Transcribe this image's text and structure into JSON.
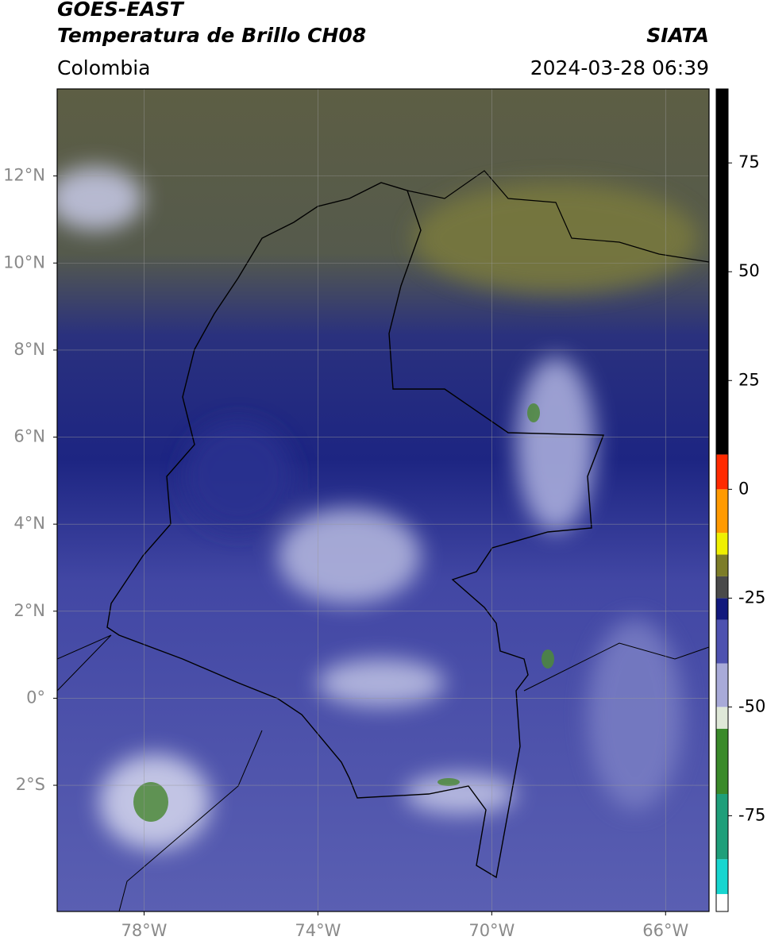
{
  "header": {
    "title_lines": [
      "GOES-EAST",
      "Temperatura de Brillo CH08"
    ],
    "source": "SIATA",
    "region": "Colombia",
    "timestamp": "2024-03-28 06:39"
  },
  "map": {
    "xlim": [
      -80,
      -65
    ],
    "ylim": [
      -4.9,
      14
    ],
    "xticks": [
      {
        "value": -78,
        "label": "78°W"
      },
      {
        "value": -74,
        "label": "74°W"
      },
      {
        "value": -70,
        "label": "70°W"
      },
      {
        "value": -66,
        "label": "66°W"
      }
    ],
    "yticks": [
      {
        "value": 12,
        "label": "12°N"
      },
      {
        "value": 10,
        "label": "10°N"
      },
      {
        "value": 8,
        "label": "8°N"
      },
      {
        "value": 6,
        "label": "6°N"
      },
      {
        "value": 4,
        "label": "4°N"
      },
      {
        "value": 2,
        "label": "2°N"
      },
      {
        "value": 0,
        "label": "0°"
      },
      {
        "value": -2,
        "label": "2°S"
      }
    ],
    "grid": true
  },
  "colorbar": {
    "lim": [
      -97,
      92
    ],
    "ticks": [
      75,
      50,
      25,
      0,
      -25,
      -50,
      -75
    ],
    "segments": [
      {
        "from": -97,
        "to": -93,
        "color": "#ffffff"
      },
      {
        "from": -93,
        "to": -85,
        "color": "#17d6d0"
      },
      {
        "from": -85,
        "to": -70,
        "color": "#1f9f7a"
      },
      {
        "from": -70,
        "to": -55,
        "color": "#3a8a2a"
      },
      {
        "from": -55,
        "to": -50,
        "color": "#dfe8d8"
      },
      {
        "from": -50,
        "to": -40,
        "color": "#a8aad8"
      },
      {
        "from": -40,
        "to": -30,
        "color": "#4e52b0"
      },
      {
        "from": -30,
        "to": -25,
        "color": "#12197d"
      },
      {
        "from": -25,
        "to": -20,
        "color": "#4a4a4a"
      },
      {
        "from": -20,
        "to": -15,
        "color": "#7d7d28"
      },
      {
        "from": -15,
        "to": -10,
        "color": "#f0f000"
      },
      {
        "from": -10,
        "to": 0,
        "color": "#ff9a00"
      },
      {
        "from": 0,
        "to": 8,
        "color": "#ff2a00"
      },
      {
        "from": 8,
        "to": 92,
        "color": "#000000"
      }
    ]
  }
}
